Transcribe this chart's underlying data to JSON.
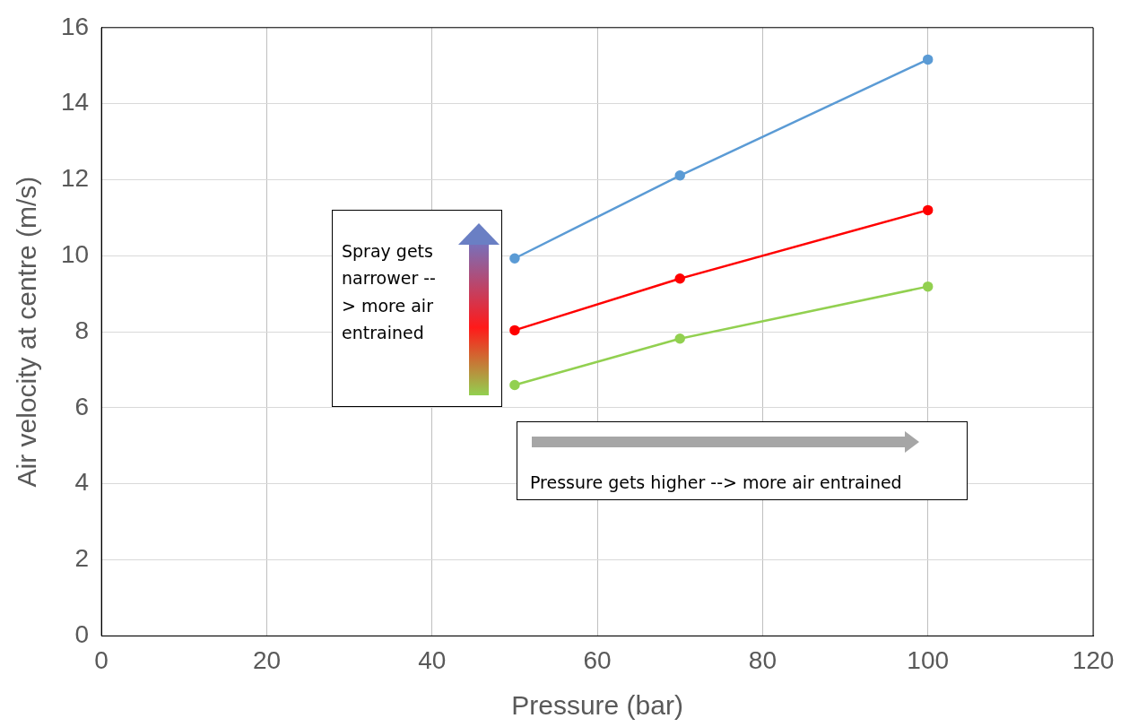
{
  "chart_data": {
    "type": "line",
    "xlabel": "Pressure (bar)",
    "ylabel": "Air velocity at centre (m/s)",
    "x": [
      50,
      70,
      100
    ],
    "series": [
      {
        "color": "#5b9bd5",
        "values": [
          9.93,
          12.11,
          15.16
        ]
      },
      {
        "color": "#ff0000",
        "values": [
          8.04,
          9.4,
          11.2
        ]
      },
      {
        "color": "#92d050",
        "values": [
          6.6,
          7.82,
          9.19
        ]
      }
    ],
    "xlim": [
      0,
      120
    ],
    "xticks": [
      0,
      20,
      40,
      60,
      80,
      100,
      120
    ],
    "ylim": [
      0,
      16
    ],
    "yticks": [
      0,
      2,
      4,
      6,
      8,
      10,
      12,
      14,
      16
    ],
    "grid": true,
    "legend": false,
    "marker": "circle",
    "line_style": "solid",
    "annotations": [
      "Spray gets narrower --> more air entrained",
      "Pressure gets higher --> more air entrained"
    ]
  }
}
